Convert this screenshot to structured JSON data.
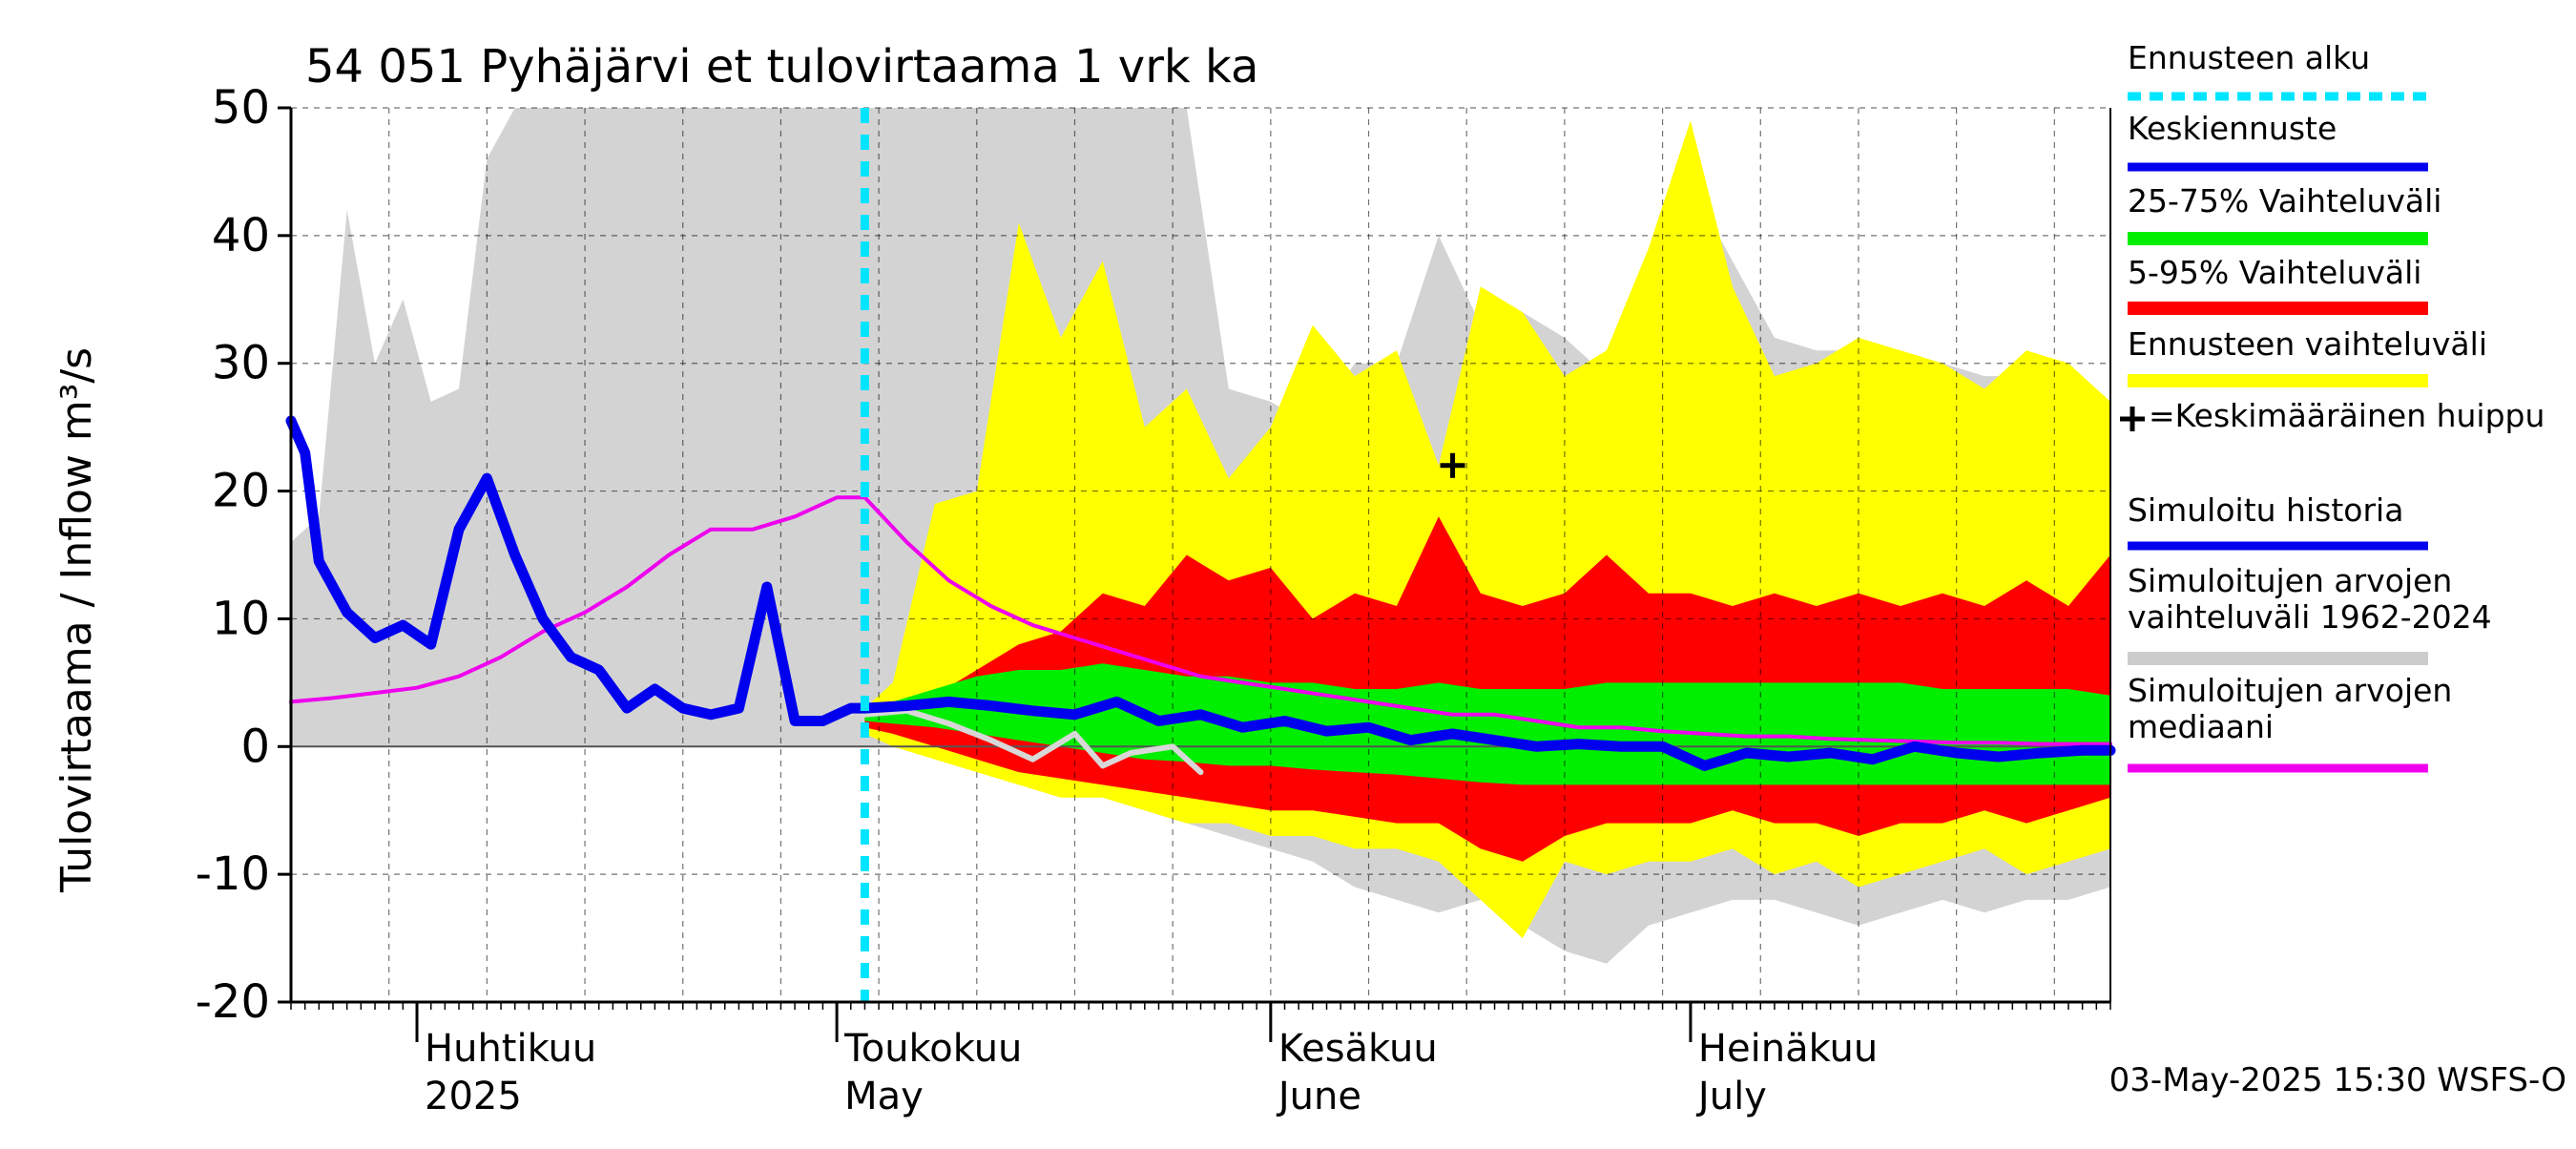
{
  "chart_data": {
    "type": "area",
    "title": "54 051 Pyhäjärvi et tulovirtaama 1 vrk ka",
    "ylabel": "Tulovirtaama / Inflow    m³/s",
    "ylim": [
      -20,
      50
    ],
    "yticks": [
      -20,
      -10,
      0,
      10,
      20,
      30,
      40,
      50
    ],
    "xlim": [
      "2025-03-23",
      "2025-07-31"
    ],
    "grid": true,
    "legend_position": "right",
    "timestamp": "03-May-2025 15:30 WSFS-O",
    "month_labels": [
      {
        "date": "2025-04-01",
        "fi": "Huhtikuu",
        "en": "2025"
      },
      {
        "date": "2025-05-01",
        "fi": "Toukokuu",
        "en": "May"
      },
      {
        "date": "2025-06-01",
        "fi": "Kesäkuu",
        "en": "June"
      },
      {
        "date": "2025-07-01",
        "fi": "Heinäkuu",
        "en": "July"
      }
    ],
    "forecast_start": "2025-05-03",
    "mean_peak": {
      "date": "2025-06-14",
      "value": 22
    },
    "legend": [
      {
        "label": "Ennusteen alku",
        "color": "#00e5ff",
        "style": "dashed"
      },
      {
        "label": "Keskiennuste",
        "color": "#0000ee",
        "style": "line"
      },
      {
        "label": "25-75% Vaihteluväli",
        "color": "#00ee00",
        "style": "band"
      },
      {
        "label": "5-95% Vaihteluväli",
        "color": "#ff0000",
        "style": "band"
      },
      {
        "label": "Ennusteen vaihteluväli",
        "color": "#ffff00",
        "style": "band"
      },
      {
        "label": "=Keskimääräinen huippu",
        "color": "#000000",
        "style": "plus"
      },
      {
        "label": "Simuloitu historia",
        "color": "#0000ee",
        "style": "line"
      },
      {
        "label": "Simuloitujen arvojen vaihteluväli 1962-2024",
        "color": "#cccccc",
        "style": "band"
      },
      {
        "label": "Simuloitujen arvojen mediaani",
        "color": "#ee00ee",
        "style": "line"
      }
    ],
    "hist_range": {
      "x": [
        "2025-03-23",
        "2025-03-25",
        "2025-03-27",
        "2025-03-29",
        "2025-03-31",
        "2025-04-02",
        "2025-04-04",
        "2025-04-06",
        "2025-04-08",
        "2025-04-10",
        "2025-04-12",
        "2025-04-14",
        "2025-04-16",
        "2025-04-18",
        "2025-04-20",
        "2025-04-23",
        "2025-04-26",
        "2025-04-29",
        "2025-05-02",
        "2025-05-05",
        "2025-05-08",
        "2025-05-11",
        "2025-05-14",
        "2025-05-17",
        "2025-05-20",
        "2025-05-23",
        "2025-05-26",
        "2025-05-29",
        "2025-06-01",
        "2025-06-04",
        "2025-06-07",
        "2025-06-10",
        "2025-06-13",
        "2025-06-16",
        "2025-06-19",
        "2025-06-22",
        "2025-06-25",
        "2025-06-28",
        "2025-07-01",
        "2025-07-04",
        "2025-07-07",
        "2025-07-10",
        "2025-07-13",
        "2025-07-16",
        "2025-07-19",
        "2025-07-22",
        "2025-07-25",
        "2025-07-28",
        "2025-07-31"
      ],
      "low": [
        0,
        0,
        0,
        0,
        0,
        0,
        0,
        0,
        0,
        0,
        0,
        0,
        0,
        0,
        0,
        0,
        0,
        0,
        0,
        0,
        -0.5,
        -1,
        -2,
        -3,
        -4,
        -5,
        -6,
        -7,
        -8,
        -9,
        -11,
        -12,
        -13,
        -12,
        -14,
        -16,
        -17,
        -14,
        -13,
        -12,
        -12,
        -13,
        -14,
        -13,
        -12,
        -13,
        -12,
        -12,
        -11
      ],
      "high": [
        16,
        18,
        42,
        30,
        35,
        27,
        28,
        46,
        50,
        50,
        50,
        50,
        50,
        50,
        50,
        50,
        50,
        50,
        50,
        50,
        50,
        50,
        50,
        50,
        50,
        50,
        50,
        28,
        27,
        25,
        30,
        30,
        40,
        33,
        34,
        32,
        29,
        28,
        44,
        38,
        32,
        31,
        31,
        30,
        30,
        29,
        29,
        27,
        27
      ]
    },
    "forecast_full": {
      "x": [
        "2025-05-03",
        "2025-05-05",
        "2025-05-08",
        "2025-05-11",
        "2025-05-14",
        "2025-05-17",
        "2025-05-20",
        "2025-05-23",
        "2025-05-26",
        "2025-05-29",
        "2025-06-01",
        "2025-06-04",
        "2025-06-07",
        "2025-06-10",
        "2025-06-13",
        "2025-06-16",
        "2025-06-19",
        "2025-06-22",
        "2025-06-25",
        "2025-06-28",
        "2025-07-01",
        "2025-07-04",
        "2025-07-07",
        "2025-07-10",
        "2025-07-13",
        "2025-07-16",
        "2025-07-19",
        "2025-07-22",
        "2025-07-25",
        "2025-07-28",
        "2025-07-31"
      ],
      "low": [
        1,
        0,
        -1,
        -2,
        -3,
        -4,
        -4,
        -5,
        -6,
        -6,
        -7,
        -7,
        -8,
        -8,
        -9,
        -12,
        -15,
        -9,
        -10,
        -9,
        -9,
        -8,
        -10,
        -9,
        -11,
        -10,
        -9,
        -8,
        -10,
        -9,
        -8
      ],
      "high": [
        3,
        5,
        19,
        20,
        41,
        32,
        38,
        25,
        28,
        21,
        25,
        33,
        29,
        31,
        22,
        36,
        34,
        29,
        31,
        39,
        49,
        36,
        29,
        30,
        32,
        31,
        30,
        28,
        31,
        30,
        27
      ]
    },
    "forecast_5_95": {
      "x": [
        "2025-05-03",
        "2025-05-05",
        "2025-05-08",
        "2025-05-11",
        "2025-05-14",
        "2025-05-17",
        "2025-05-20",
        "2025-05-23",
        "2025-05-26",
        "2025-05-29",
        "2025-06-01",
        "2025-06-04",
        "2025-06-07",
        "2025-06-10",
        "2025-06-13",
        "2025-06-16",
        "2025-06-19",
        "2025-06-22",
        "2025-06-25",
        "2025-06-28",
        "2025-07-01",
        "2025-07-04",
        "2025-07-07",
        "2025-07-10",
        "2025-07-13",
        "2025-07-16",
        "2025-07-19",
        "2025-07-22",
        "2025-07-25",
        "2025-07-28",
        "2025-07-31"
      ],
      "low": [
        1.5,
        1,
        0,
        -1,
        -2,
        -2.5,
        -3,
        -3.5,
        -4,
        -4.5,
        -5,
        -5,
        -5.5,
        -6,
        -6,
        -8,
        -9,
        -7,
        -6,
        -6,
        -6,
        -5,
        -6,
        -6,
        -7,
        -6,
        -6,
        -5,
        -6,
        -5,
        -4
      ],
      "high": [
        2.5,
        3,
        4,
        6,
        8,
        9,
        12,
        11,
        15,
        13,
        14,
        10,
        12,
        11,
        18,
        12,
        11,
        12,
        15,
        12,
        12,
        11,
        12,
        11,
        12,
        11,
        12,
        11,
        13,
        11,
        15
      ]
    },
    "forecast_25_75": {
      "x": [
        "2025-05-03",
        "2025-05-05",
        "2025-05-08",
        "2025-05-11",
        "2025-05-14",
        "2025-05-17",
        "2025-05-20",
        "2025-05-23",
        "2025-05-26",
        "2025-05-29",
        "2025-06-01",
        "2025-06-04",
        "2025-06-07",
        "2025-06-10",
        "2025-06-13",
        "2025-06-16",
        "2025-06-19",
        "2025-06-22",
        "2025-06-25",
        "2025-06-28",
        "2025-07-01",
        "2025-07-04",
        "2025-07-07",
        "2025-07-10",
        "2025-07-13",
        "2025-07-16",
        "2025-07-19",
        "2025-07-22",
        "2025-07-25",
        "2025-07-28",
        "2025-07-31"
      ],
      "low": [
        2,
        1.8,
        1.5,
        1,
        0.5,
        0,
        -0.5,
        -1,
        -1.2,
        -1.5,
        -1.5,
        -1.8,
        -2,
        -2.2,
        -2.5,
        -2.8,
        -3,
        -3,
        -3,
        -3,
        -3,
        -3,
        -3,
        -3,
        -3,
        -3,
        -3,
        -3,
        -3,
        -3,
        -3
      ],
      "high": [
        3,
        3.5,
        4.5,
        5.5,
        6,
        6,
        6.5,
        6,
        5.5,
        5.5,
        5,
        5,
        4.5,
        4.5,
        5,
        4.5,
        4.5,
        4.5,
        5,
        5,
        5,
        5,
        5,
        5,
        5,
        5,
        4.5,
        4.5,
        4.5,
        4.5,
        4
      ]
    },
    "median_sim": {
      "x": [
        "2025-03-23",
        "2025-03-26",
        "2025-03-29",
        "2025-04-01",
        "2025-04-04",
        "2025-04-07",
        "2025-04-10",
        "2025-04-13",
        "2025-04-16",
        "2025-04-19",
        "2025-04-22",
        "2025-04-25",
        "2025-04-28",
        "2025-05-01",
        "2025-05-03",
        "2025-05-06",
        "2025-05-09",
        "2025-05-12",
        "2025-05-15",
        "2025-05-18",
        "2025-05-21",
        "2025-05-24",
        "2025-05-27",
        "2025-05-30",
        "2025-06-02",
        "2025-06-05",
        "2025-06-08",
        "2025-06-11",
        "2025-06-14",
        "2025-06-17",
        "2025-06-20",
        "2025-06-23",
        "2025-06-26",
        "2025-06-29",
        "2025-07-02",
        "2025-07-05",
        "2025-07-08",
        "2025-07-11",
        "2025-07-14",
        "2025-07-17",
        "2025-07-20",
        "2025-07-23",
        "2025-07-26",
        "2025-07-29",
        "2025-07-31"
      ],
      "y": [
        3.5,
        3.8,
        4.2,
        4.6,
        5.5,
        7,
        9,
        10.5,
        12.5,
        15,
        17,
        17,
        18,
        19.5,
        19.5,
        16,
        13,
        11,
        9.5,
        8.5,
        7.5,
        6.5,
        5.5,
        5,
        4.5,
        4,
        3.5,
        3,
        2.5,
        2.5,
        2,
        1.5,
        1.5,
        1.2,
        1,
        0.8,
        0.8,
        0.6,
        0.5,
        0.4,
        0.3,
        0.3,
        0.2,
        0.2,
        0.2
      ]
    },
    "sim_history": {
      "x": [
        "2025-03-23",
        "2025-03-24",
        "2025-03-25",
        "2025-03-27",
        "2025-03-29",
        "2025-03-31",
        "2025-04-02",
        "2025-04-04",
        "2025-04-06",
        "2025-04-08",
        "2025-04-10",
        "2025-04-12",
        "2025-04-14",
        "2025-04-16",
        "2025-04-18",
        "2025-04-20",
        "2025-04-22",
        "2025-04-24",
        "2025-04-26",
        "2025-04-28",
        "2025-04-30",
        "2025-05-01",
        "2025-05-02",
        "2025-05-03"
      ],
      "y": [
        25.5,
        23,
        14.5,
        10.5,
        8.5,
        9.5,
        8,
        17,
        21,
        15,
        10,
        7,
        6,
        3,
        4.5,
        3,
        2.5,
        3,
        12.5,
        2,
        2,
        2.5,
        3,
        3
      ]
    },
    "mean_forecast": {
      "x": [
        "2025-05-03",
        "2025-05-06",
        "2025-05-09",
        "2025-05-12",
        "2025-05-15",
        "2025-05-18",
        "2025-05-21",
        "2025-05-24",
        "2025-05-27",
        "2025-05-30",
        "2025-06-02",
        "2025-06-05",
        "2025-06-08",
        "2025-06-11",
        "2025-06-14",
        "2025-06-17",
        "2025-06-20",
        "2025-06-23",
        "2025-06-26",
        "2025-06-29",
        "2025-07-02",
        "2025-07-05",
        "2025-07-08",
        "2025-07-11",
        "2025-07-14",
        "2025-07-17",
        "2025-07-20",
        "2025-07-23",
        "2025-07-26",
        "2025-07-29",
        "2025-07-31"
      ],
      "y": [
        3,
        3.2,
        3.5,
        3.2,
        2.8,
        2.5,
        3.5,
        2,
        2.5,
        1.5,
        2,
        1.2,
        1.5,
        0.5,
        1,
        0.5,
        0,
        0.2,
        0,
        0,
        -1.5,
        -0.5,
        -0.8,
        -0.5,
        -1,
        0,
        -0.5,
        -0.8,
        -0.5,
        -0.3,
        -0.3
      ]
    },
    "history_run": {
      "x": [
        "2025-05-03",
        "2025-05-06",
        "2025-05-09",
        "2025-05-12",
        "2025-05-15",
        "2025-05-18",
        "2025-05-20",
        "2025-05-22",
        "2025-05-25",
        "2025-05-27"
      ],
      "y": [
        2.5,
        2.8,
        1.8,
        0.5,
        -1,
        1,
        -1.5,
        -0.5,
        0,
        -2
      ]
    }
  }
}
